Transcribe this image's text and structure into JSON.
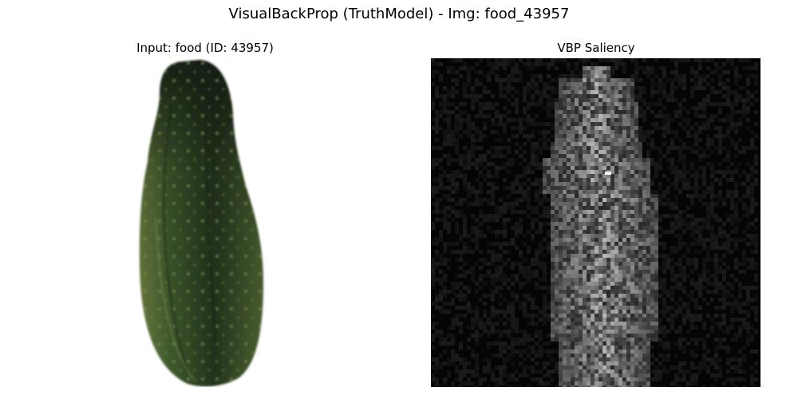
{
  "figure": {
    "title": "VisualBackProp (TruthModel) - Img: food_43957"
  },
  "panels": [
    {
      "title": "Input: food (ID: 43957)",
      "content": "cucumber photo"
    },
    {
      "title": "VBP Saliency",
      "content": "grayscale saliency map"
    }
  ],
  "colors": {
    "background": "#ffffff",
    "saliency_background": "#050505",
    "cucumber_dark": "#1f2a18",
    "cucumber_mid": "#3f5a2c",
    "cucumber_light": "#6f7f3f"
  }
}
